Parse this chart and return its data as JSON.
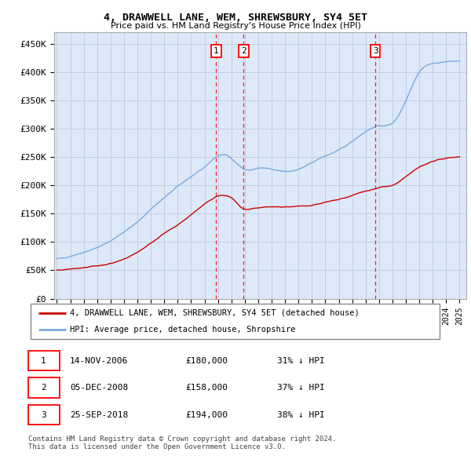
{
  "title": "4, DRAWWELL LANE, WEM, SHREWSBURY, SY4 5ET",
  "subtitle": "Price paid vs. HM Land Registry's House Price Index (HPI)",
  "ylabel_ticks": [
    "£0",
    "£50K",
    "£100K",
    "£150K",
    "£200K",
    "£250K",
    "£300K",
    "£350K",
    "£400K",
    "£450K"
  ],
  "ytick_values": [
    0,
    50000,
    100000,
    150000,
    200000,
    250000,
    300000,
    350000,
    400000,
    450000
  ],
  "ylim": [
    0,
    470000
  ],
  "xlim_start": 1994.8,
  "xlim_end": 2025.5,
  "transactions": [
    {
      "num": 1,
      "date": "14-NOV-2006",
      "price": 180000,
      "hpi_diff": "31% ↓ HPI",
      "year": 2006.87
    },
    {
      "num": 2,
      "date": "05-DEC-2008",
      "price": 158000,
      "hpi_diff": "37% ↓ HPI",
      "year": 2008.92
    },
    {
      "num": 3,
      "date": "25-SEP-2018",
      "price": 194000,
      "hpi_diff": "38% ↓ HPI",
      "year": 2018.73
    }
  ],
  "legend_property_label": "4, DRAWWELL LANE, WEM, SHREWSBURY, SY4 5ET (detached house)",
  "legend_hpi_label": "HPI: Average price, detached house, Shropshire",
  "footer": "Contains HM Land Registry data © Crown copyright and database right 2024.\nThis data is licensed under the Open Government Licence v3.0.",
  "property_color": "#cc0000",
  "hpi_color": "#7aaadd",
  "background_color": "#ffffff",
  "chart_bg": "#dde8f8",
  "grid_color": "#bbccdd"
}
